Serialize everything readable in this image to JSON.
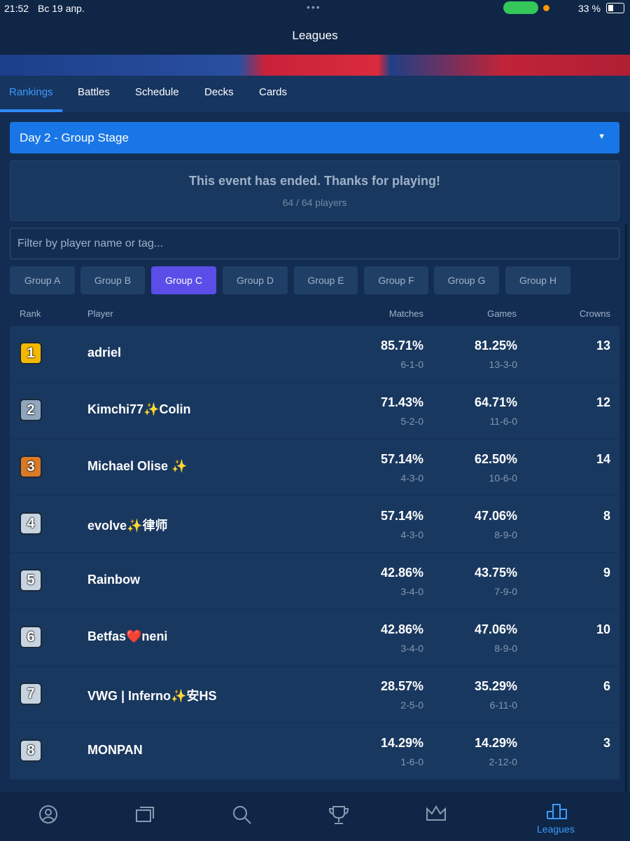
{
  "status_bar": {
    "time": "21:52",
    "date": "Вс 19 апр.",
    "battery": "33 %"
  },
  "header": {
    "title": "Leagues"
  },
  "tabs": [
    {
      "label": "Rankings",
      "active": true
    },
    {
      "label": "Battles"
    },
    {
      "label": "Schedule"
    },
    {
      "label": "Decks"
    },
    {
      "label": "Cards"
    }
  ],
  "stage_select": "Day 2 - Group Stage",
  "notice": {
    "title": "This event has ended. Thanks for playing!",
    "subtitle": "64 / 64 players"
  },
  "filter_placeholder": "Filter by player name or tag...",
  "groups": [
    {
      "label": "Group A"
    },
    {
      "label": "Group B"
    },
    {
      "label": "Group C",
      "active": true
    },
    {
      "label": "Group D"
    },
    {
      "label": "Group E"
    },
    {
      "label": "Group F"
    },
    {
      "label": "Group G"
    },
    {
      "label": "Group H"
    }
  ],
  "table": {
    "headers": {
      "rank": "Rank",
      "player": "Player",
      "matches": "Matches",
      "games": "Games",
      "crowns": "Crowns"
    },
    "rows": [
      {
        "rank": 1,
        "player": "adriel",
        "matches": "85.71%",
        "matches_record": "6-1-0",
        "games": "81.25%",
        "games_record": "13-3-0",
        "crowns": 13
      },
      {
        "rank": 2,
        "player": "Kimchi77✨Colin",
        "matches": "71.43%",
        "matches_record": "5-2-0",
        "games": "64.71%",
        "games_record": "11-6-0",
        "crowns": 12
      },
      {
        "rank": 3,
        "player": "Michael Olise ✨",
        "matches": "57.14%",
        "matches_record": "4-3-0",
        "games": "62.50%",
        "games_record": "10-6-0",
        "crowns": 14
      },
      {
        "rank": 4,
        "player": "evolve✨律师",
        "matches": "57.14%",
        "matches_record": "4-3-0",
        "games": "47.06%",
        "games_record": "8-9-0",
        "crowns": 8
      },
      {
        "rank": 5,
        "player": "Rainbow",
        "matches": "42.86%",
        "matches_record": "3-4-0",
        "games": "43.75%",
        "games_record": "7-9-0",
        "crowns": 9
      },
      {
        "rank": 6,
        "player": "Betfas❤️neni",
        "matches": "42.86%",
        "matches_record": "3-4-0",
        "games": "47.06%",
        "games_record": "8-9-0",
        "crowns": 10
      },
      {
        "rank": 7,
        "player": "VWG | Inferno✨安HS",
        "matches": "28.57%",
        "matches_record": "2-5-0",
        "games": "35.29%",
        "games_record": "6-11-0",
        "crowns": 6
      },
      {
        "rank": 8,
        "player": "MONPAN",
        "matches": "14.29%",
        "matches_record": "1-6-0",
        "games": "14.29%",
        "games_record": "2-12-0",
        "crowns": 3
      }
    ]
  },
  "bottom_nav": {
    "active_label": "Leagues"
  }
}
